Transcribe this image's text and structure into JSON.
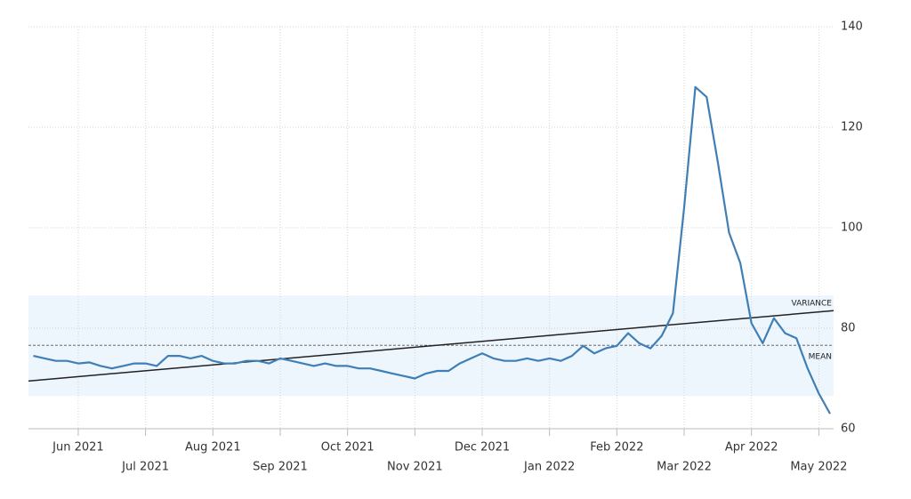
{
  "chart_data": {
    "type": "line",
    "categories": [
      null,
      null,
      null,
      null,
      "Jun 2021",
      null,
      null,
      null,
      null,
      null,
      "Jul 2021",
      null,
      null,
      null,
      null,
      null,
      "Aug 2021",
      null,
      null,
      null,
      null,
      null,
      "Sep 2021",
      null,
      null,
      null,
      null,
      null,
      "Oct 2021",
      null,
      null,
      null,
      null,
      null,
      "Nov 2021",
      null,
      null,
      null,
      null,
      null,
      "Dec 2021",
      null,
      null,
      null,
      null,
      null,
      "Jan 2022",
      null,
      null,
      null,
      null,
      null,
      "Feb 2022",
      null,
      null,
      null,
      null,
      null,
      "Mar 2022",
      null,
      null,
      null,
      null,
      null,
      "Apr 2022",
      null,
      null,
      null,
      null,
      null,
      "May 2022",
      null
    ],
    "values": [
      74.5,
      74,
      73.5,
      73.5,
      73,
      73.2,
      72.5,
      72,
      72.5,
      73,
      73,
      72.5,
      74.5,
      74.5,
      74,
      74.5,
      73.5,
      73,
      73,
      73.5,
      73.5,
      73,
      74,
      73.5,
      73,
      72.5,
      73,
      72.5,
      72.5,
      72,
      72,
      71.5,
      71,
      70.5,
      70,
      71,
      71.5,
      71.5,
      73,
      74,
      75,
      74,
      73.5,
      73.5,
      74,
      73.5,
      74,
      73.5,
      74.5,
      76.5,
      75,
      76,
      76.5,
      79,
      77,
      76,
      78.5,
      83,
      104,
      128,
      126,
      113,
      99,
      93,
      81,
      77,
      82,
      79,
      78,
      72,
      67,
      63
    ],
    "color": "#3f7fb6",
    "ylim": [
      60,
      140
    ],
    "yticks": [
      60,
      80,
      100,
      120,
      140
    ],
    "grid": true,
    "mean": 76.6,
    "mean_label": "MEAN",
    "variance_band": [
      66.5,
      86.5
    ],
    "variance_label": "VARIANCE",
    "trend": [
      69.5,
      83.5
    ]
  }
}
